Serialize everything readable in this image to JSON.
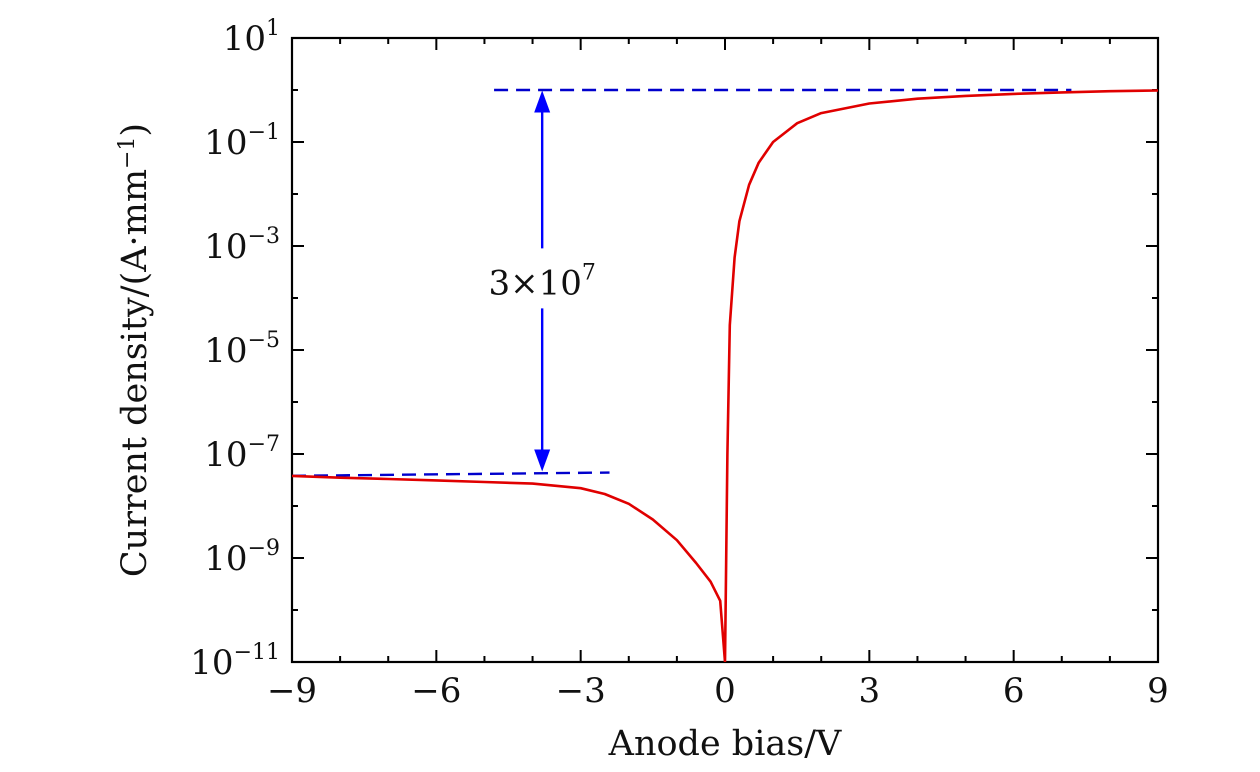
{
  "chart_data": {
    "type": "line",
    "xlabel": "Anode bias/V",
    "ylabel": "Current density/(A·mm",
    "ylabel_exp": "−1",
    "ylabel_close": ")",
    "xlim": [
      -9,
      9
    ],
    "ylim": [
      1e-11,
      10
    ],
    "yscale": "log",
    "grid": false,
    "x_ticks": [
      {
        "value": -9,
        "label": "−9"
      },
      {
        "value": -6,
        "label": "−6"
      },
      {
        "value": -3,
        "label": "−3"
      },
      {
        "value": 0,
        "label": "0"
      },
      {
        "value": 3,
        "label": "3"
      },
      {
        "value": 6,
        "label": "6"
      },
      {
        "value": 9,
        "label": "9"
      }
    ],
    "y_ticks": [
      {
        "value": 10,
        "base": "10",
        "exp": "1"
      },
      {
        "value": 0.1,
        "base": "10",
        "exp": "−1"
      },
      {
        "value": 0.001,
        "base": "10",
        "exp": "−3"
      },
      {
        "value": 1e-05,
        "base": "10",
        "exp": "−5"
      },
      {
        "value": 1e-07,
        "base": "10",
        "exp": "−7"
      },
      {
        "value": 1e-09,
        "base": "10",
        "exp": "−9"
      },
      {
        "value": 1e-11,
        "base": "10",
        "exp": "−11"
      }
    ],
    "series": [
      {
        "color": "#e00000",
        "x": [
          -9,
          -8,
          -7,
          -6,
          -5,
          -4,
          -3,
          -2.5,
          -2,
          -1.5,
          -1,
          -0.6,
          -0.3,
          -0.1,
          0,
          0.05,
          0.1,
          0.2,
          0.3,
          0.5,
          0.7,
          1.0,
          1.5,
          2.0,
          3.0,
          4.0,
          5.0,
          6.0,
          7.0,
          8.0,
          9.0
        ],
        "y": [
          3.8e-08,
          3.5e-08,
          3.3e-08,
          3.1e-08,
          2.9e-08,
          2.7e-08,
          2.2e-08,
          1.7e-08,
          1.1e-08,
          5.5e-09,
          2.2e-09,
          8e-10,
          3.5e-10,
          1.5e-10,
          1e-11,
          1e-07,
          3e-05,
          0.0006,
          0.003,
          0.015,
          0.04,
          0.1,
          0.23,
          0.36,
          0.55,
          0.68,
          0.77,
          0.84,
          0.9,
          0.95,
          0.98
        ]
      }
    ],
    "reference_lines": [
      {
        "color": "#0000cc",
        "style": "dashed",
        "x": [
          -4.8,
          7.2
        ],
        "y": [
          1.0,
          1.0
        ]
      },
      {
        "color": "#0000cc",
        "style": "dashed",
        "x": [
          -9,
          -2.4
        ],
        "y": [
          3.8e-08,
          4.4e-08
        ]
      }
    ],
    "arrow": {
      "color": "#0000ff",
      "x": -3.8,
      "y_from": 4.6e-08,
      "y_to": 0.98
    },
    "annotations": [
      {
        "text": "3×10",
        "exp": "7",
        "x": -3.8,
        "y": 0.0002
      }
    ]
  }
}
